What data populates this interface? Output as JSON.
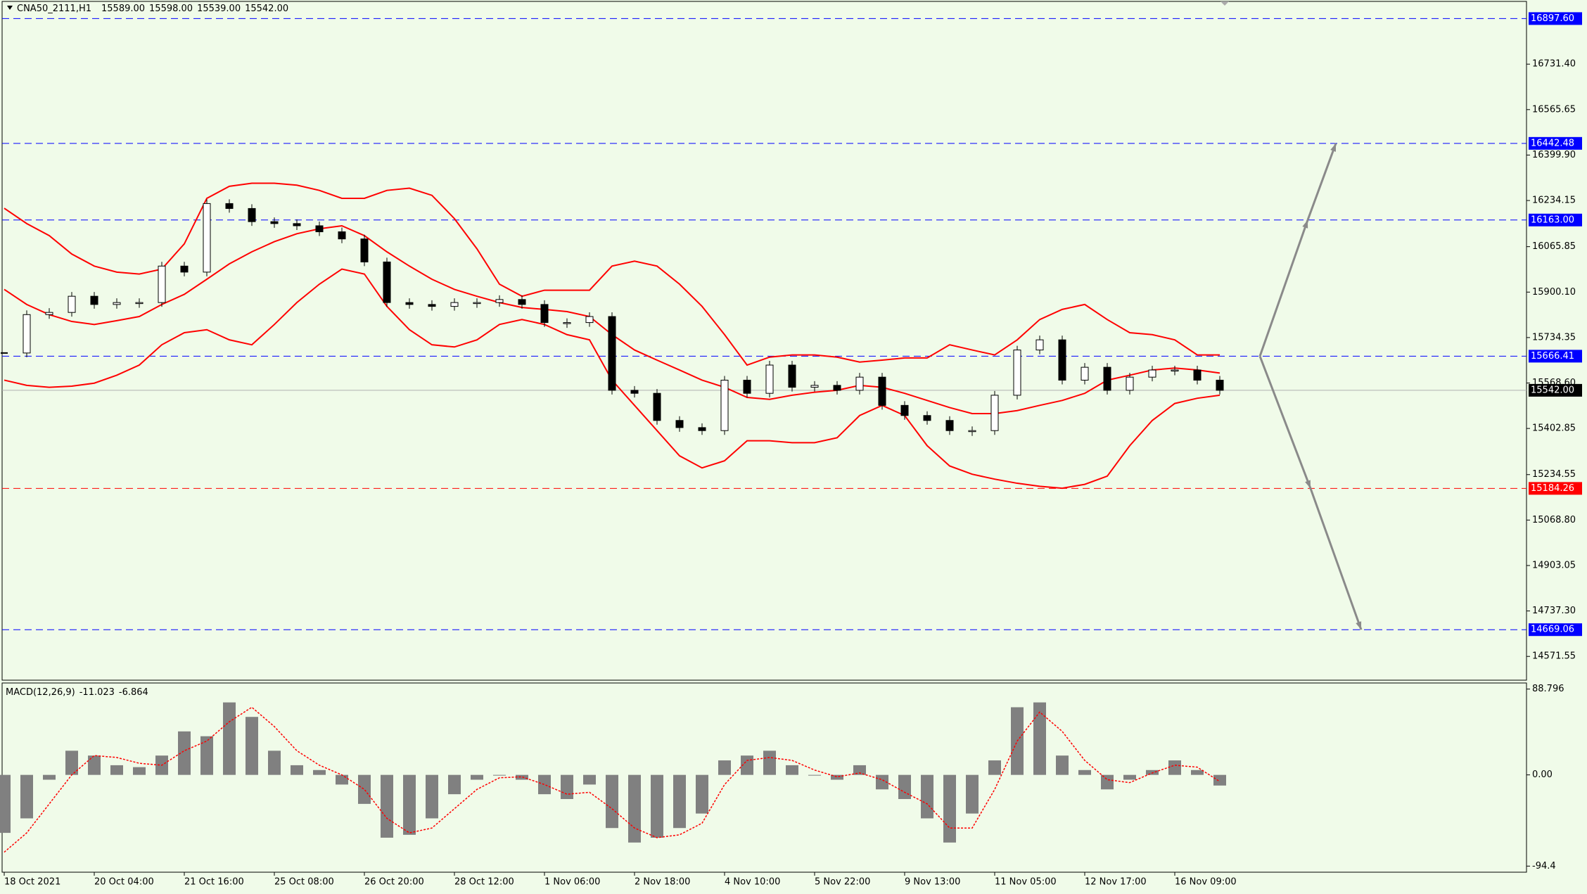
{
  "chart_data": [
    {
      "type": "candlestick",
      "title": "CNA50_2111,H1",
      "header_prices": [
        "15589.00",
        "15598.00",
        "15539.00",
        "15542.00"
      ],
      "categories": [
        "18 Oct 2021",
        null,
        null,
        null,
        "20 Oct 04:00",
        null,
        null,
        null,
        "21 Oct 16:00",
        null,
        null,
        null,
        "25 Oct 08:00",
        null,
        null,
        null,
        "26 Oct 20:00",
        null,
        null,
        null,
        "28 Oct 12:00",
        null,
        null,
        null,
        "1 Nov 06:00",
        null,
        null,
        null,
        "2 Nov 18:00",
        null,
        null,
        null,
        "4 Nov 10:00",
        null,
        null,
        null,
        "5 Nov 22:00",
        null,
        null,
        null,
        "9 Nov 13:00",
        null,
        null,
        null,
        "11 Nov 05:00",
        null,
        null,
        null,
        "12 Nov 17:00",
        null,
        null,
        null,
        "16 Nov 09:00",
        null,
        null
      ],
      "close": [
        15678,
        15818,
        15826,
        15885,
        15855,
        15862,
        15862,
        15995,
        15973,
        16223,
        16205,
        16157,
        16150,
        16142,
        16120,
        16094,
        16010,
        15862,
        15855,
        15848,
        15862,
        15862,
        15873,
        15855,
        15789,
        15789,
        15811,
        15542,
        15531,
        15432,
        15406,
        15395,
        15579,
        15531,
        15634,
        15553,
        15560,
        15542,
        15590,
        15487,
        15450,
        15432,
        15395,
        15395,
        15524,
        15689,
        15726,
        15579,
        15626,
        15542,
        15590,
        15616,
        15616,
        15579,
        15542
      ],
      "candle_color": "#000000",
      "bands": [
        {
          "color": "#ff0000",
          "values": [
            16206,
            16150,
            16106,
            16039,
            15995,
            15973,
            15966,
            15984,
            16076,
            16242,
            16286,
            16297,
            16297,
            16290,
            16271,
            16242,
            16242,
            16271,
            16279,
            16253,
            16168,
            16058,
            15929,
            15885,
            15907,
            15907,
            15907,
            15995,
            16013,
            15995,
            15929,
            15848,
            15745,
            15634,
            15663,
            15671,
            15671,
            15663,
            15645,
            15652,
            15660,
            15660,
            15708,
            15689,
            15671,
            15726,
            15800,
            15837,
            15855,
            15800,
            15752,
            15745,
            15726,
            15671,
            15671
          ]
        },
        {
          "color": "#ff0000",
          "values": [
            15910,
            15855,
            15818,
            15793,
            15782,
            15796,
            15811,
            15855,
            15892,
            15947,
            16003,
            16047,
            16084,
            16113,
            16131,
            16142,
            16106,
            16047,
            15995,
            15947,
            15910,
            15885,
            15862,
            15844,
            15837,
            15829,
            15811,
            15745,
            15689,
            15652,
            15616,
            15579,
            15553,
            15516,
            15509,
            15524,
            15535,
            15542,
            15560,
            15553,
            15531,
            15505,
            15479,
            15457,
            15457,
            15468,
            15487,
            15505,
            15531,
            15579,
            15597,
            15616,
            15623,
            15616,
            15605
          ]
        },
        {
          "color": "#ff0000",
          "values": [
            15579,
            15560,
            15553,
            15557,
            15568,
            15597,
            15634,
            15708,
            15752,
            15763,
            15726,
            15708,
            15782,
            15862,
            15929,
            15984,
            15966,
            15848,
            15763,
            15708,
            15700,
            15726,
            15782,
            15800,
            15782,
            15745,
            15726,
            15579,
            15487,
            15395,
            15303,
            15259,
            15285,
            15358,
            15358,
            15351,
            15351,
            15369,
            15450,
            15487,
            15450,
            15340,
            15266,
            15236,
            15218,
            15203,
            15192,
            15185,
            15199,
            15229,
            15340,
            15432,
            15494,
            15513,
            15524
          ]
        }
      ],
      "levels": [
        {
          "value": 16897.6,
          "label": "16897.60",
          "color": "#0000ff"
        },
        {
          "value": 16442.48,
          "label": "16442.48",
          "color": "#0000ff"
        },
        {
          "value": 16163,
          "label": "16163.00",
          "color": "#0000ff"
        },
        {
          "value": 15666.41,
          "label": "15666.41",
          "color": "#0000ff"
        },
        {
          "value": 15184.26,
          "label": "15184.26",
          "color": "#ff0000"
        },
        {
          "value": 14669.06,
          "label": "14669.06",
          "color": "#0000ff"
        }
      ],
      "current_price": {
        "value": 15542,
        "label": "15542.00"
      },
      "ylim": [
        14484.9,
        16960.2
      ],
      "yticks": [
        {
          "value": 16731.4,
          "label": "16731.40"
        },
        16565.65,
        {
          "value": 16399.9,
          "label": "16399.90"
        },
        16234.15,
        16065.85,
        {
          "value": 15900.1,
          "label": "15900.10"
        },
        15734.35,
        {
          "value": 15568.6,
          "label": "15568.60"
        },
        15402.85,
        15234.55,
        {
          "value": 15068.8,
          "label": "15068.80"
        },
        14903.05,
        {
          "value": 14737.3,
          "label": "14737.30"
        },
        14571.55
      ],
      "grid": false
    },
    {
      "type": "macd",
      "title": "MACD(12,26,9)",
      "histogram": {
        "color": "#808080",
        "values": [
          -60,
          -45,
          -5,
          25,
          20,
          10,
          8,
          20,
          45,
          40,
          75,
          60,
          25,
          10,
          5,
          -10,
          -30,
          -65,
          -62,
          -45,
          -20,
          -5,
          0,
          -5,
          -20,
          -25,
          -10,
          -55,
          -70,
          -65,
          -55,
          -40,
          15,
          20,
          25,
          10,
          0,
          -5,
          10,
          -15,
          -25,
          -45,
          -70,
          -40,
          15,
          70,
          75,
          20,
          5,
          -15,
          -5,
          5,
          15,
          5,
          -11.023
        ]
      },
      "signal": {
        "color": "#ff0000",
        "values": [
          -80,
          -60,
          -30,
          0,
          20,
          18,
          12,
          10,
          25,
          35,
          55,
          70,
          50,
          25,
          10,
          0,
          -15,
          -45,
          -60,
          -55,
          -35,
          -15,
          -3,
          -2,
          -10,
          -20,
          -18,
          -35,
          -55,
          -65,
          -62,
          -50,
          -10,
          15,
          18,
          15,
          5,
          -2,
          2,
          -5,
          -18,
          -30,
          -55,
          -55,
          -15,
          35,
          65,
          45,
          15,
          -5,
          -8,
          2,
          10,
          8,
          -6.864
        ]
      },
      "ylim": [
        -100.7,
        95.1
      ],
      "yticks": [
        88.796,
        {
          "value": 0,
          "label": "0.00"
        },
        -94.4
      ]
    }
  ]
}
